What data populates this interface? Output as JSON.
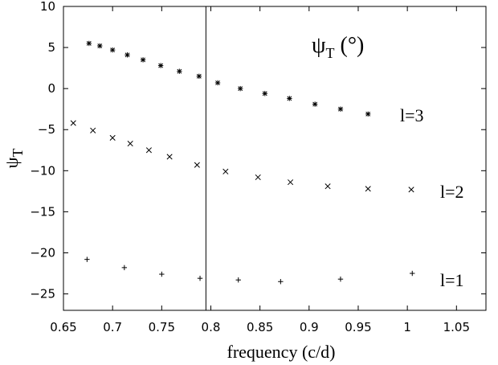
{
  "chart_data": {
    "type": "scatter",
    "title": "",
    "xlabel": "frequency (c/d)",
    "ylabel": {
      "main": "ψ",
      "sub": "T"
    },
    "xlim": [
      0.65,
      1.08
    ],
    "ylim": [
      -27,
      10
    ],
    "xticks": [
      0.65,
      0.7,
      0.75,
      0.8,
      0.85,
      0.9,
      0.95,
      1,
      1.05
    ],
    "xtick_labels": [
      "0.65",
      "0.7",
      "0.75",
      "0.8",
      "0.85",
      "0.9",
      "0.95",
      "1",
      "1.05"
    ],
    "yticks": [
      10,
      5,
      0,
      -5,
      -10,
      -15,
      -20,
      -25
    ],
    "ytick_labels": [
      "10",
      "5",
      "0",
      "−5",
      "−10",
      "−15",
      "−20",
      "−25"
    ],
    "grid": false,
    "vline_x": 0.795,
    "annotation": {
      "main": "ψ",
      "sub": "T",
      "tail": " (°)"
    },
    "series": [
      {
        "name": "l=3",
        "marker": "asterisk",
        "x": [
          0.676,
          0.687,
          0.7,
          0.715,
          0.731,
          0.749,
          0.768,
          0.788,
          0.807,
          0.83,
          0.855,
          0.88,
          0.906,
          0.932,
          0.96
        ],
        "y": [
          5.5,
          5.2,
          4.7,
          4.1,
          3.5,
          2.8,
          2.1,
          1.5,
          0.7,
          0.0,
          -0.6,
          -1.2,
          -1.9,
          -2.5,
          -3.1
        ]
      },
      {
        "name": "l=2",
        "marker": "x",
        "x": [
          0.66,
          0.68,
          0.7,
          0.718,
          0.737,
          0.758,
          0.786,
          0.815,
          0.848,
          0.881,
          0.919,
          0.96,
          1.004
        ],
        "y": [
          -4.2,
          -5.1,
          -6.0,
          -6.7,
          -7.5,
          -8.3,
          -9.3,
          -10.1,
          -10.8,
          -11.4,
          -11.9,
          -12.2,
          -12.3
        ]
      },
      {
        "name": "l=1",
        "marker": "plus",
        "x": [
          0.674,
          0.712,
          0.75,
          0.789,
          0.828,
          0.871,
          0.932,
          1.005
        ],
        "y": [
          -20.8,
          -21.8,
          -22.6,
          -23.1,
          -23.3,
          -23.5,
          -23.2,
          -22.5
        ]
      }
    ]
  }
}
